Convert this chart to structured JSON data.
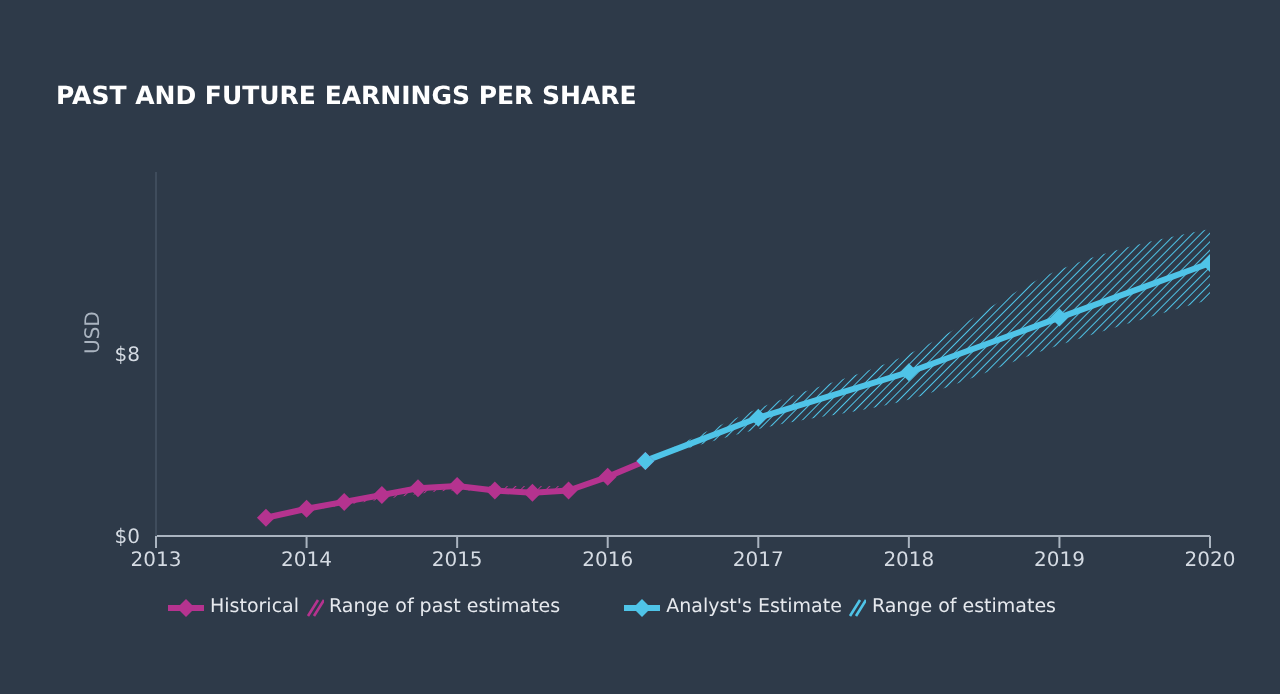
{
  "chart_data": {
    "type": "line",
    "title": "PAST AND FUTURE EARNINGS PER SHARE",
    "ylabel": "USD",
    "xlim": [
      2013,
      2020
    ],
    "xticks": [
      2013,
      2014,
      2015,
      2016,
      2017,
      2018,
      2019,
      2020
    ],
    "ylim": [
      0,
      16
    ],
    "yticks": [
      {
        "value": 0,
        "label": "$0"
      },
      {
        "value": 8,
        "label": "$8"
      }
    ],
    "grid": false,
    "legend": "bottom",
    "marker": "diamond",
    "annotations": [
      "Range of past estimates",
      "Range of estimates"
    ],
    "series": [
      {
        "name": "Historical",
        "color": "#b5338f",
        "x": [
          2013.73,
          2014,
          2014.25,
          2014.5,
          2014.74,
          2015,
          2015.25,
          2015.5,
          2015.74,
          2016,
          2016.25
        ],
        "values": [
          0.8,
          1.2,
          1.5,
          1.8,
          2.1,
          2.2,
          2.0,
          1.9,
          2.0,
          2.6,
          3.3
        ],
        "lower": [
          0.8,
          1.1,
          1.35,
          1.6,
          1.85,
          2.0,
          2.0,
          1.9,
          2.0,
          2.6,
          3.3
        ],
        "upper": [
          0.8,
          1.2,
          1.5,
          1.8,
          2.1,
          2.2,
          2.2,
          2.2,
          2.2,
          2.6,
          3.3
        ]
      },
      {
        "name": "Analyst's Estimate",
        "color": "#4fc4e8",
        "x": [
          2016.25,
          2017,
          2018,
          2019,
          2020
        ],
        "values": [
          3.3,
          5.2,
          7.2,
          9.6,
          12.0
        ],
        "lower": [
          3.3,
          4.7,
          6.0,
          8.4,
          10.4
        ],
        "upper": [
          3.3,
          5.6,
          8.0,
          11.7,
          13.5
        ]
      }
    ]
  }
}
